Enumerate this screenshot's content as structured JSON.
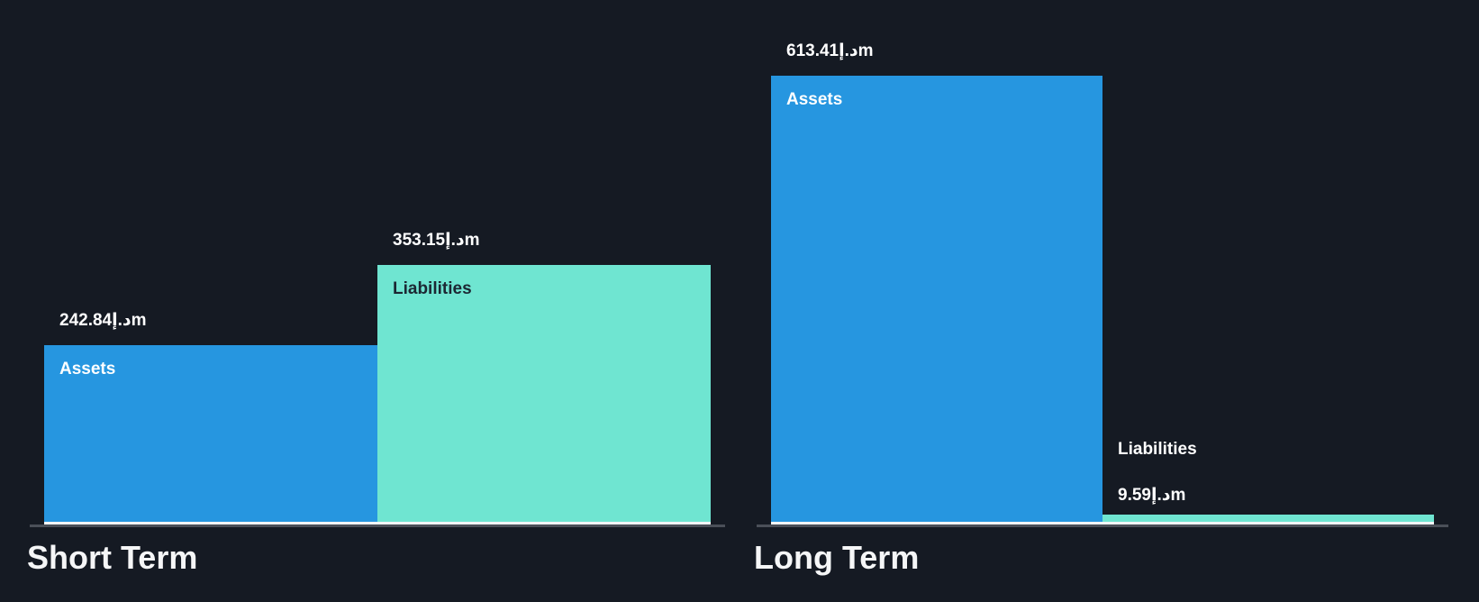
{
  "page": {
    "background": "#151A23"
  },
  "chart_data": {
    "type": "bar",
    "title": "",
    "value_suffix": "د.إm",
    "legend": "none",
    "grid": "off",
    "groups": [
      {
        "label": "Short Term",
        "bars": [
          {
            "name": "Assets",
            "value": 242.84,
            "value_label": "242.84د.إm",
            "color_key": "assets_blue",
            "name_position": "inside"
          },
          {
            "name": "Liabilities",
            "value": 353.15,
            "value_label": "353.15د.إm",
            "color_key": "liabilities_teal",
            "name_position": "inside"
          }
        ]
      },
      {
        "label": "Long Term",
        "bars": [
          {
            "name": "Assets",
            "value": 613.41,
            "value_label": "613.41د.إm",
            "color_key": "assets_blue",
            "name_position": "inside"
          },
          {
            "name": "Liabilities",
            "value": 9.59,
            "value_label": "9.59د.إm",
            "color_key": "liabilities_teal",
            "name_position": "outside"
          }
        ]
      }
    ],
    "axis": {
      "baseline_color": "#4A4F58",
      "bar_baseline_color": "#F2F5F7"
    }
  },
  "colors": {
    "background": "#151A23",
    "assets_blue": "#2696E0",
    "liabilities_teal": "#6FE5D1",
    "name_on_blue": "#FFFFFF",
    "name_on_teal": "#1C2733",
    "value_label": "#FFFFFF",
    "title": "#F5F6F7"
  }
}
